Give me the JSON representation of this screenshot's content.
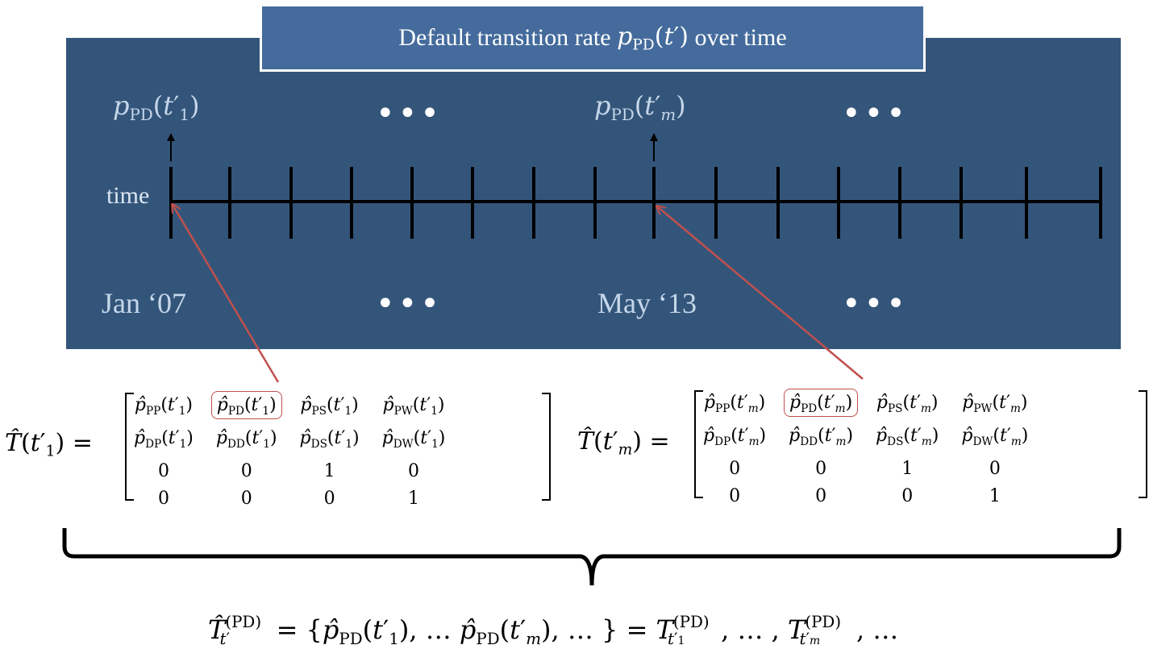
{
  "title": {
    "prefix": "Default transition rate",
    "suffix": "over time"
  },
  "top_labels": {
    "first": "p_PD(t'_1)",
    "second": "p_PD(t'_m)"
  },
  "ellipsis": "•••",
  "axis_label": "time",
  "dates": {
    "first": "Jan ‘07",
    "second": "May ‘13"
  },
  "matrices": [
    {
      "name": "T(t'_1)",
      "rows": [
        [
          "p_PP(t'_1)",
          "p_PD(t'_1)",
          "p_PS(t'_1)",
          "p_PW(t'_1)"
        ],
        [
          "p_DP(t'_1)",
          "p_DD(t'_1)",
          "p_DS(t'_1)",
          "p_DW(t'_1)"
        ],
        [
          "0",
          "0",
          "1",
          "0"
        ],
        [
          "0",
          "0",
          "0",
          "1"
        ]
      ]
    },
    {
      "name": "T(t'_m)",
      "rows": [
        [
          "p_PP(t'_m)",
          "p_PD(t'_m)",
          "p_PS(t'_m)",
          "p_PW(t'_m)"
        ],
        [
          "p_DP(t'_m)",
          "p_DD(t'_m)",
          "p_DS(t'_m)",
          "p_DW(t'_m)"
        ],
        [
          "0",
          "0",
          "1",
          "0"
        ],
        [
          "0",
          "0",
          "0",
          "1"
        ]
      ]
    }
  ],
  "bottom_equation": "T^(PD)_t' = {p_PD(t'_1), … p_PD(t'_m), … } = T^(PD)_t'_1, … , T^(PD)_t'_m, …",
  "colors": {
    "panel": "#34557a",
    "title_box": "#446b9c",
    "arrow": "#c0504d",
    "label_text": "#c5d7ea"
  }
}
